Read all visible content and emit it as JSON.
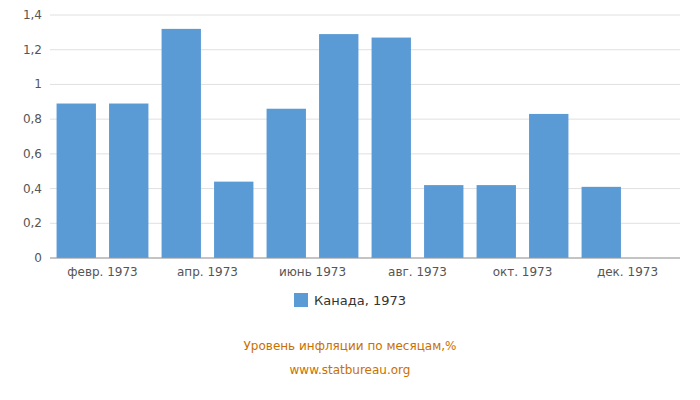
{
  "chart_data": {
    "type": "bar",
    "categories": [
      null,
      "февр. 1973",
      null,
      "апр. 1973",
      null,
      "июнь 1973",
      null,
      "авг. 1973",
      null,
      "окт. 1973",
      null,
      "дек. 1973"
    ],
    "series": [
      {
        "name": "Канада, 1973",
        "color": "#5b9bd5",
        "values": [
          0.89,
          0.89,
          1.32,
          0.44,
          0.86,
          1.29,
          1.27,
          0.42,
          0.42,
          0.83,
          0.41,
          null
        ]
      }
    ],
    "ylim": [
      0,
      1.4
    ],
    "yticks": [
      0,
      {
        "value": 0.2,
        "label": "0,2"
      },
      {
        "value": 0.4,
        "label": "0,4"
      },
      {
        "value": 0.6,
        "label": "0,6"
      },
      {
        "value": 0.8,
        "label": "0,8"
      },
      1,
      {
        "value": 1.2,
        "label": "1,2"
      },
      {
        "value": 1.4,
        "label": "1,4"
      }
    ],
    "grid": true,
    "legend": "bottom",
    "annotations": [
      "Уровень инфляции по месяцам,%",
      "www.statbureau.org"
    ]
  }
}
